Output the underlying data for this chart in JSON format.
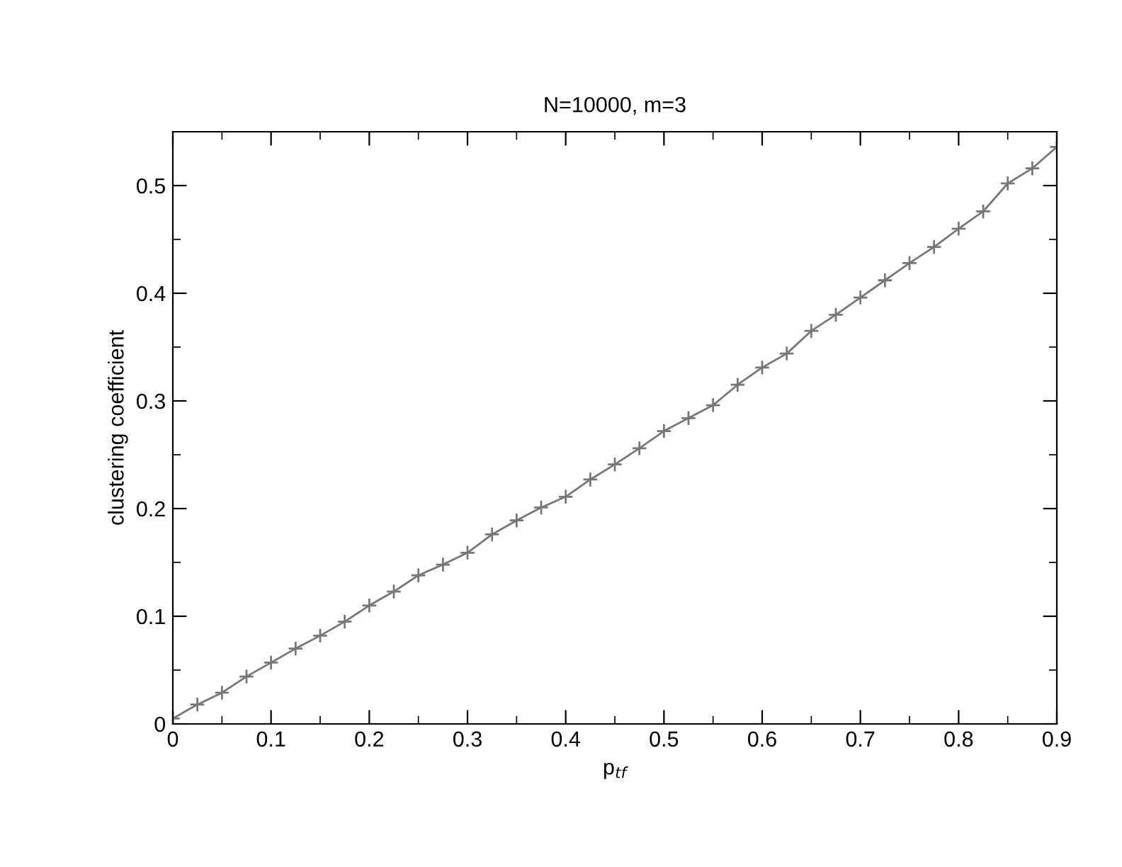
{
  "chart_data": {
    "type": "line",
    "title": "N=10000, m=3",
    "xlabel": "p$_{tf}$",
    "ylabel": "clustering coefficient",
    "x": [
      0,
      0.025,
      0.05,
      0.075,
      0.1,
      0.125,
      0.15,
      0.175,
      0.2,
      0.225,
      0.25,
      0.275,
      0.3,
      0.325,
      0.35,
      0.375,
      0.4,
      0.425,
      0.45,
      0.475,
      0.5,
      0.525,
      0.55,
      0.575,
      0.6,
      0.625,
      0.65,
      0.675,
      0.7,
      0.725,
      0.75,
      0.775,
      0.8,
      0.825,
      0.85,
      0.875,
      0.9
    ],
    "series": [
      {
        "color": "#777777",
        "values": [
          0.005,
          0.018,
          0.029,
          0.044,
          0.057,
          0.07,
          0.082,
          0.095,
          0.11,
          0.123,
          0.138,
          0.148,
          0.159,
          0.176,
          0.189,
          0.201,
          0.211,
          0.227,
          0.241,
          0.256,
          0.272,
          0.284,
          0.296,
          0.315,
          0.331,
          0.344,
          0.365,
          0.38,
          0.396,
          0.412,
          0.428,
          0.443,
          0.46,
          0.476,
          0.502,
          0.516,
          0.536
        ]
      }
    ],
    "xlim": [
      0,
      0.9
    ],
    "ylim": [
      0,
      0.55
    ],
    "xticks": [
      0,
      {
        "value": 0.05,
        "label": null
      },
      0.1,
      {
        "value": 0.15,
        "label": null
      },
      0.2,
      {
        "value": 0.25,
        "label": null
      },
      0.3,
      {
        "value": 0.35,
        "label": null
      },
      0.4,
      {
        "value": 0.45,
        "label": null
      },
      0.5,
      {
        "value": 0.55,
        "label": null
      },
      0.6,
      {
        "value": 0.65,
        "label": null
      },
      0.7,
      {
        "value": 0.75,
        "label": null
      },
      0.8,
      {
        "value": 0.85,
        "label": null
      },
      0.9
    ],
    "yticks": [
      0,
      {
        "value": 0.05,
        "label": null
      },
      0.1,
      {
        "value": 0.15,
        "label": null
      },
      0.2,
      {
        "value": 0.25,
        "label": null
      },
      0.3,
      {
        "value": 0.35,
        "label": null
      },
      0.4,
      {
        "value": 0.45,
        "label": null
      },
      0.5
    ],
    "marker": "cross",
    "line_style": "solid",
    "grid": false,
    "legend": false
  }
}
